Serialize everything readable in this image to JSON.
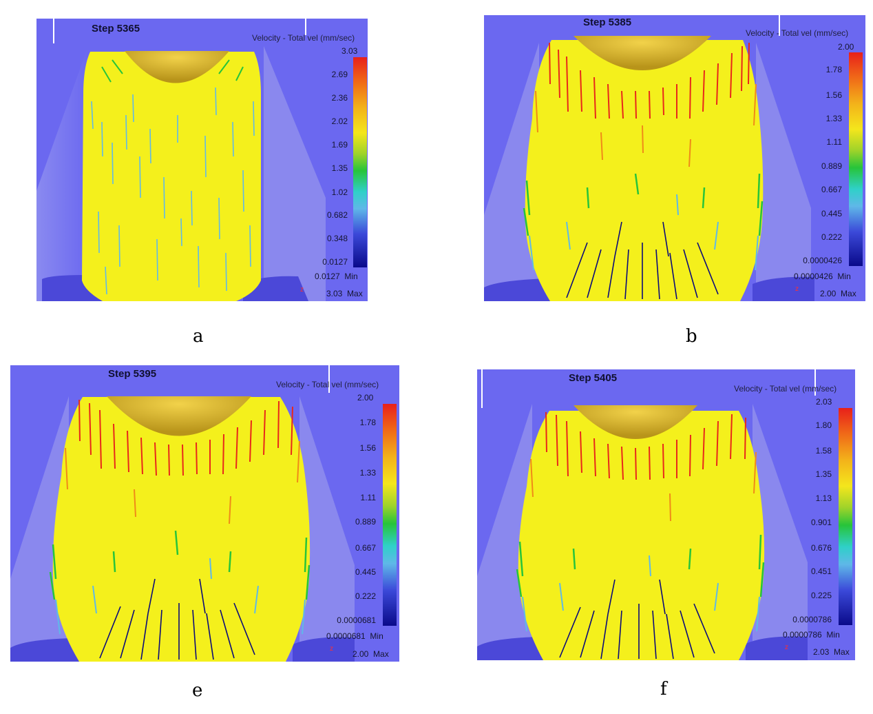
{
  "panels": [
    {
      "id": "a",
      "step": "Step 5365",
      "legend_title": "Velocity - Total vel (mm/sec)",
      "top_value": "3.03",
      "ticks": [
        "2.69",
        "2.36",
        "2.02",
        "1.69",
        "1.35",
        "1.02",
        "0.682",
        "0.348",
        "0.0127"
      ],
      "min_value": "0.0127",
      "min_label": "Min",
      "max_value": "3.03",
      "max_label": "Max",
      "axis": "z",
      "caption": "a"
    },
    {
      "id": "b",
      "step": "Step 5385",
      "legend_title": "Velocity - Total vel (mm/sec)",
      "top_value": "2.00",
      "ticks": [
        "1.78",
        "1.56",
        "1.33",
        "1.11",
        "0.889",
        "0.667",
        "0.445",
        "0.222",
        "0.0000426"
      ],
      "min_value": "0.0000426",
      "min_label": "Min",
      "max_value": "2.00",
      "max_label": "Max",
      "axis": "z",
      "caption": "b"
    },
    {
      "id": "e",
      "step": "Step 5395",
      "legend_title": "Velocity - Total vel (mm/sec)",
      "top_value": "2.00",
      "ticks": [
        "1.78",
        "1.56",
        "1.33",
        "1.11",
        "0.889",
        "0.667",
        "0.445",
        "0.222",
        "0.0000681"
      ],
      "min_value": "0.0000681",
      "min_label": "Min",
      "max_value": "2.00",
      "max_label": "Max",
      "axis": "z",
      "caption": "e"
    },
    {
      "id": "f",
      "step": "Step 5405",
      "legend_title": "Velocity - Total vel (mm/sec)",
      "top_value": "2.03",
      "ticks": [
        "1.80",
        "1.58",
        "1.35",
        "1.13",
        "0.901",
        "0.676",
        "0.451",
        "0.225",
        "0.0000786"
      ],
      "min_value": "0.0000786",
      "min_label": "Min",
      "max_value": "2.03",
      "max_label": "Max",
      "axis": "z",
      "caption": "f"
    }
  ],
  "colors": {
    "background": "#6b68f0",
    "material": "#f4f01c",
    "hot": "#e8281a",
    "cool": "#5fb8e8",
    "slow": "#0a0a7a",
    "tool": "#d6b21e"
  }
}
